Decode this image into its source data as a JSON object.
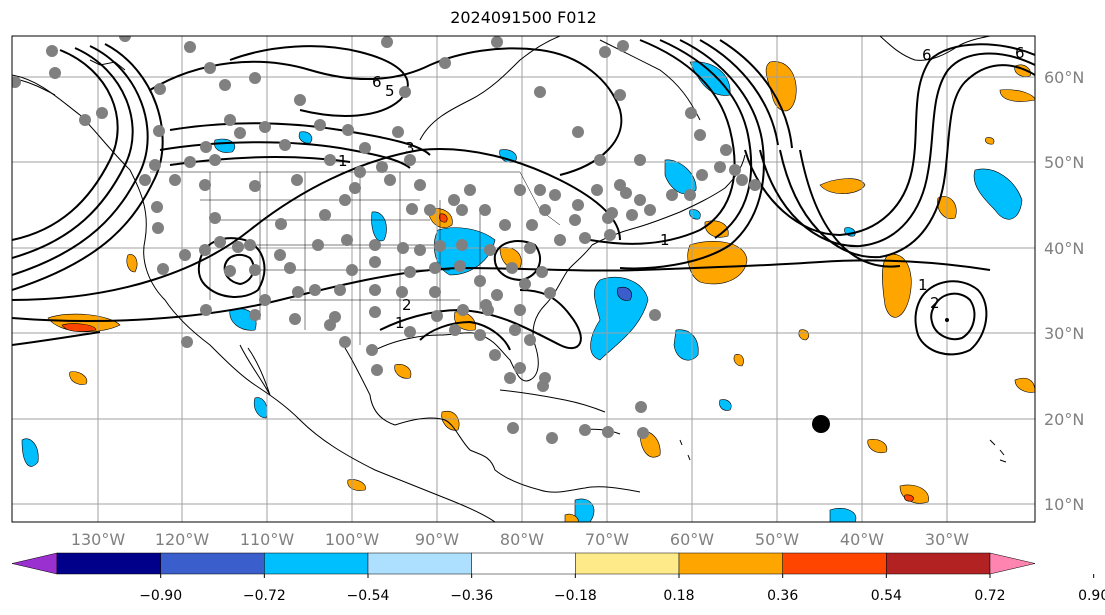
{
  "title": "2024091500 F012",
  "lon_labels": [
    "130°W",
    "120°W",
    "110°W",
    "100°W",
    "90°W",
    "80°W",
    "70°W",
    "60°W",
    "50°W",
    "40°W",
    "30°W"
  ],
  "lat_labels": [
    "60°N",
    "50°N",
    "40°N",
    "30°N",
    "20°N",
    "10°N"
  ],
  "colorbar": {
    "ticks": [
      "−0.90",
      "−0.72",
      "−0.54",
      "−0.36",
      "−0.18",
      "0.18",
      "0.36",
      "0.54",
      "0.72",
      "0.90"
    ],
    "colors": [
      "#9b30d0",
      "#00008b",
      "#3a5fcd",
      "#00bfff",
      "#addfff",
      "#ffffff",
      "#ffea8a",
      "#ffa500",
      "#ff4500",
      "#b22222",
      "#ff85b0"
    ]
  },
  "contour_labels": [
    "6",
    "5",
    "3",
    "1",
    "2",
    "1",
    "1",
    "1",
    "2",
    "6",
    "1"
  ]
}
